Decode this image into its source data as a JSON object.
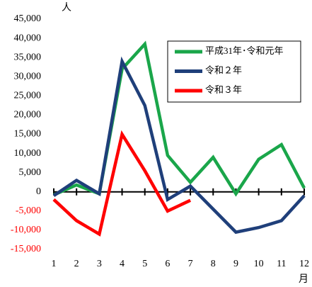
{
  "chart_data": {
    "type": "line",
    "y_unit": "人",
    "x_unit": "月",
    "categories": [
      "1",
      "2",
      "3",
      "4",
      "5",
      "6",
      "7",
      "8",
      "9",
      "10",
      "11",
      "12"
    ],
    "series": [
      {
        "name": "平成31年･令和元年",
        "color": "#1aa64a",
        "values": [
          -800,
          1800,
          -500,
          32000,
          38500,
          9500,
          2500,
          9000,
          -500,
          8500,
          12300,
          1000
        ]
      },
      {
        "name": "令和２年",
        "color": "#1f3f7a",
        "values": [
          -1000,
          3000,
          -500,
          34000,
          22500,
          -2000,
          1500,
          -4500,
          -10500,
          -9300,
          -7500,
          -1000
        ]
      },
      {
        "name": "令和３年",
        "color": "#ff0000",
        "values": [
          -2000,
          -7500,
          -11000,
          15000,
          5500,
          -5000,
          -2200,
          null,
          null,
          null,
          null,
          null
        ]
      }
    ],
    "ylim": [
      -15000,
      45000
    ],
    "yticks": [
      {
        "value": -15000,
        "label": "-15,000"
      },
      {
        "value": -10000,
        "label": "-10,000"
      },
      {
        "value": -5000,
        "label": "-5,000"
      },
      0,
      {
        "value": 5000,
        "label": "5,000"
      },
      {
        "value": 10000,
        "label": "10,000"
      },
      {
        "value": 15000,
        "label": "15,000"
      },
      {
        "value": 20000,
        "label": "20,000"
      },
      {
        "value": 25000,
        "label": "25,000"
      },
      {
        "value": 30000,
        "label": "30,000"
      },
      {
        "value": 35000,
        "label": "35,000"
      },
      {
        "value": 40000,
        "label": "40,000"
      },
      {
        "value": 45000,
        "label": "45,000"
      }
    ],
    "legend": "upper right"
  }
}
